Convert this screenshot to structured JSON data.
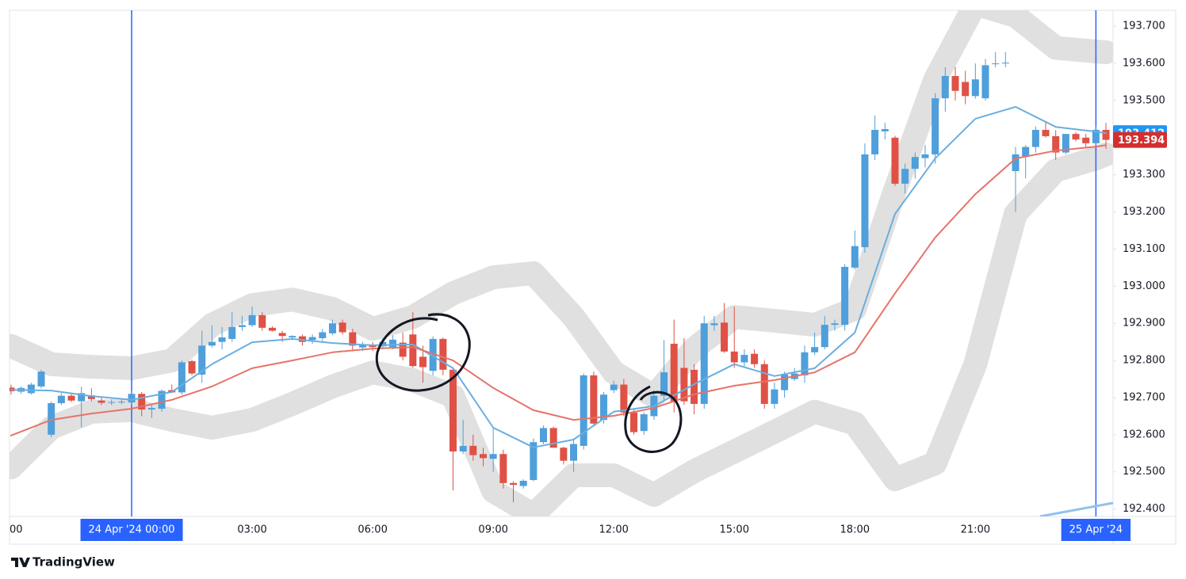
{
  "chart_data": {
    "type": "candlestick",
    "categories": [
      "00",
      null,
      null,
      null,
      null,
      null,
      null,
      null,
      null,
      null,
      null,
      null,
      "24 Apr '24 00:00",
      null,
      null,
      null,
      null,
      null,
      null,
      null,
      null,
      null,
      null,
      null,
      "03:00",
      null,
      null,
      null,
      null,
      null,
      null,
      null,
      null,
      null,
      null,
      null,
      "06:00",
      null,
      null,
      null,
      null,
      null,
      null,
      null,
      null,
      null,
      null,
      null,
      "09:00",
      null,
      null,
      null,
      null,
      null,
      null,
      null,
      null,
      null,
      null,
      null,
      "12:00",
      null,
      null,
      null,
      null,
      null,
      null,
      null,
      null,
      null,
      null,
      null,
      "15:00",
      null,
      null,
      null,
      null,
      null,
      null,
      null,
      null,
      null,
      null,
      null,
      "18:00",
      null,
      null,
      null,
      null,
      null,
      null,
      null,
      null,
      null,
      null,
      null,
      "21:00",
      null,
      null,
      null,
      null,
      null,
      null,
      null,
      null,
      null,
      null,
      null,
      "25 Apr '24",
      null
    ],
    "open": [
      192.727,
      192.716,
      192.712,
      192.73,
      192.6,
      192.685,
      192.705,
      192.69,
      192.706,
      192.692,
      192.688,
      192.688,
      192.687,
      192.71,
      192.668,
      192.67,
      192.72,
      192.714,
      192.798,
      192.762,
      192.84,
      192.85,
      192.858,
      192.89,
      192.895,
      192.922,
      192.888,
      192.874,
      192.862,
      192.865,
      192.855,
      192.86,
      192.873,
      192.902,
      192.876,
      192.835,
      192.842,
      192.838,
      192.836,
      192.848,
      192.87,
      192.81,
      192.772,
      192.858,
      192.775,
      192.555,
      192.57,
      192.548,
      192.535,
      192.548,
      192.47,
      192.462,
      192.478,
      192.58,
      192.618,
      192.565,
      192.53,
      192.57,
      192.76,
      192.64,
      192.72,
      192.735,
      192.66,
      192.61,
      192.65,
      192.705,
      192.845,
      192.78,
      192.775,
      192.683,
      192.895,
      192.902,
      192.824,
      192.795,
      192.818,
      192.79,
      192.683,
      192.72,
      192.75,
      192.76,
      192.822,
      192.836,
      192.896,
      192.896,
      193.05,
      193.105,
      193.355,
      193.417,
      193.4,
      193.276,
      193.316,
      193.345,
      193.355,
      193.506,
      193.566,
      193.55,
      193.512,
      193.506,
      193.598,
      193.6,
      193.31,
      193.35,
      193.375,
      193.421,
      193.404,
      193.36,
      193.41,
      193.4,
      193.385,
      193.421
    ],
    "high": [
      192.735,
      192.73,
      192.74,
      192.775,
      192.69,
      192.712,
      192.712,
      192.73,
      192.725,
      192.7,
      192.695,
      192.695,
      192.718,
      192.715,
      192.68,
      192.722,
      192.735,
      192.8,
      192.802,
      192.88,
      192.895,
      192.89,
      192.93,
      192.92,
      192.945,
      192.93,
      192.892,
      192.88,
      192.868,
      192.87,
      192.87,
      192.885,
      192.91,
      192.91,
      192.885,
      192.85,
      192.85,
      192.86,
      192.868,
      192.875,
      192.93,
      192.84,
      192.865,
      192.862,
      192.782,
      192.64,
      192.6,
      192.565,
      192.62,
      192.56,
      192.475,
      192.48,
      192.59,
      192.625,
      192.622,
      192.568,
      192.59,
      192.765,
      192.77,
      192.715,
      192.745,
      192.75,
      192.67,
      192.66,
      192.72,
      192.855,
      192.91,
      192.86,
      192.79,
      192.92,
      192.92,
      192.955,
      192.945,
      192.83,
      192.83,
      192.8,
      192.74,
      192.77,
      192.78,
      192.84,
      192.875,
      192.92,
      192.91,
      193.06,
      193.15,
      193.385,
      193.46,
      193.44,
      193.405,
      193.33,
      193.36,
      193.38,
      193.52,
      193.59,
      193.59,
      193.58,
      193.6,
      193.612,
      193.63,
      193.63,
      193.375,
      193.38,
      193.43,
      193.445,
      193.42,
      193.41,
      193.415,
      193.41,
      193.43,
      193.44
    ],
    "low": [
      192.708,
      192.71,
      192.708,
      192.725,
      192.593,
      192.68,
      192.688,
      192.62,
      192.69,
      192.68,
      192.68,
      192.682,
      192.678,
      192.65,
      192.645,
      192.662,
      192.712,
      192.708,
      192.76,
      192.74,
      192.835,
      192.83,
      192.85,
      192.88,
      192.89,
      192.88,
      192.878,
      192.85,
      192.855,
      192.84,
      192.845,
      192.852,
      192.868,
      192.87,
      192.825,
      192.825,
      192.825,
      192.83,
      192.83,
      192.8,
      192.78,
      192.74,
      192.76,
      192.76,
      192.45,
      192.548,
      192.53,
      192.515,
      192.5,
      192.455,
      192.418,
      192.455,
      192.475,
      192.575,
      192.565,
      192.52,
      192.5,
      192.56,
      192.625,
      192.63,
      192.712,
      192.65,
      192.6,
      192.6,
      192.64,
      192.69,
      192.66,
      192.68,
      192.655,
      192.67,
      192.88,
      192.82,
      192.78,
      192.78,
      192.78,
      192.67,
      192.67,
      192.7,
      192.745,
      192.74,
      192.815,
      192.83,
      192.88,
      192.88,
      193.045,
      193.09,
      193.34,
      193.395,
      193.27,
      193.25,
      193.29,
      193.32,
      193.33,
      193.47,
      193.5,
      193.49,
      193.505,
      193.5,
      193.59,
      193.59,
      193.2,
      193.29,
      193.36,
      193.4,
      193.34,
      193.355,
      193.39,
      193.375,
      193.375,
      193.37
    ],
    "close": [
      192.717,
      192.726,
      192.735,
      192.77,
      192.685,
      192.705,
      192.692,
      192.712,
      192.696,
      192.686,
      192.688,
      192.689,
      192.71,
      192.668,
      192.672,
      192.718,
      192.714,
      192.795,
      192.765,
      192.84,
      192.85,
      192.862,
      192.89,
      192.895,
      192.922,
      192.888,
      192.88,
      192.866,
      192.866,
      192.85,
      192.863,
      192.876,
      192.9,
      192.876,
      192.84,
      192.842,
      192.836,
      192.85,
      192.856,
      192.81,
      192.785,
      192.782,
      192.858,
      192.775,
      192.555,
      192.57,
      192.545,
      192.537,
      192.548,
      192.47,
      192.465,
      192.476,
      192.58,
      192.618,
      192.565,
      192.53,
      192.575,
      192.76,
      192.63,
      192.708,
      192.735,
      192.66,
      192.607,
      192.655,
      192.705,
      192.768,
      192.69,
      192.69,
      192.683,
      192.9,
      192.9,
      192.824,
      192.795,
      192.815,
      192.79,
      192.683,
      192.722,
      192.762,
      192.765,
      192.822,
      192.836,
      192.896,
      192.9,
      193.052,
      193.108,
      193.355,
      193.421,
      193.423,
      193.276,
      193.316,
      193.348,
      193.355,
      193.506,
      193.566,
      193.526,
      193.512,
      193.557,
      193.595,
      193.6,
      193.602,
      193.355,
      193.375,
      193.421,
      193.404,
      193.36,
      193.41,
      193.395,
      193.385,
      193.421,
      193.394
    ],
    "up_color": "#4e9fdb",
    "down_color": "#df5145",
    "lines": [
      {
        "color": "#6aaedf",
        "x": [
          0,
          4,
          8,
          12,
          16,
          20,
          24,
          28,
          32,
          36,
          40,
          44,
          48,
          52,
          56,
          60,
          64,
          68,
          72,
          76,
          80,
          84,
          88,
          92,
          96,
          100,
          104,
          108,
          109
        ],
        "values": [
          192.721,
          192.719,
          192.704,
          192.694,
          192.715,
          192.79,
          192.849,
          192.858,
          192.847,
          192.841,
          192.843,
          192.779,
          192.619,
          192.566,
          192.587,
          192.662,
          192.677,
          192.736,
          192.79,
          192.758,
          192.779,
          192.875,
          193.195,
          193.344,
          193.451,
          193.483,
          193.429,
          193.416,
          193.412
        ]
      },
      {
        "color": "#e6736a",
        "x": [
          0,
          4,
          8,
          12,
          16,
          20,
          24,
          28,
          32,
          36,
          40,
          44,
          48,
          52,
          56,
          60,
          64,
          68,
          72,
          76,
          80,
          84,
          88,
          92,
          96,
          100,
          104,
          108,
          109
        ],
        "values": [
          192.598,
          192.64,
          192.657,
          192.67,
          192.694,
          192.73,
          192.779,
          192.8,
          192.822,
          192.832,
          192.836,
          192.8,
          192.726,
          192.666,
          192.64,
          192.651,
          192.672,
          192.709,
          192.732,
          192.747,
          192.768,
          192.822,
          192.981,
          193.131,
          193.248,
          193.344,
          193.365,
          193.376,
          193.38
        ]
      }
    ],
    "bands": [
      {
        "color": "#e0e0e0",
        "x": [
          0,
          4,
          8,
          12,
          16,
          20,
          24,
          28,
          32,
          36,
          40,
          44,
          48,
          52,
          56,
          60,
          64,
          68,
          72,
          76,
          80,
          84,
          88,
          92,
          96,
          100,
          104,
          108,
          109
        ],
        "values": [
          192.839,
          192.79,
          192.783,
          192.779,
          192.8,
          192.896,
          192.949,
          192.964,
          192.939,
          192.885,
          192.917,
          192.981,
          193.024,
          193.035,
          192.917,
          192.768,
          192.704,
          192.832,
          192.917,
          192.907,
          192.896,
          192.939,
          193.259,
          193.557,
          193.76,
          193.728,
          193.642,
          193.632,
          193.63
        ]
      },
      {
        "color": "#e0e0e0",
        "x": [
          0,
          4,
          8,
          12,
          16,
          20,
          24,
          28,
          32,
          36,
          40,
          44,
          48,
          52,
          56,
          60,
          64,
          68,
          72,
          76,
          80,
          84,
          88,
          92,
          96,
          100,
          104,
          108,
          109
        ],
        "values": [
          192.512,
          192.619,
          192.662,
          192.666,
          192.64,
          192.619,
          192.64,
          192.683,
          192.73,
          192.768,
          192.747,
          192.704,
          192.448,
          192.384,
          192.491,
          192.491,
          192.438,
          192.502,
          192.555,
          192.608,
          192.662,
          192.63,
          192.48,
          192.523,
          192.79,
          193.195,
          193.312,
          193.344,
          193.355
        ]
      }
    ],
    "session_breaks": [
      12,
      108
    ],
    "session_color": "#2962ff",
    "ylim": [
      192.38,
      193.743
    ],
    "yticks": [
      {
        "value": 192.4,
        "label": "192.400"
      },
      {
        "value": 192.5,
        "label": "192.500"
      },
      {
        "value": 192.6,
        "label": "192.600"
      },
      {
        "value": 192.7,
        "label": "192.700"
      },
      {
        "value": 192.8,
        "label": "192.800"
      },
      {
        "value": 192.9,
        "label": "192.900"
      },
      {
        "value": 193.0,
        "label": "193.000"
      },
      {
        "value": 193.1,
        "label": "193.100"
      },
      {
        "value": 193.2,
        "label": "193.200"
      },
      {
        "value": 193.3,
        "label": "193.300"
      },
      {
        "value": 193.4,
        "label": "193.400"
      },
      {
        "value": 193.5,
        "label": "193.500"
      },
      {
        "value": 193.6,
        "label": "193.600"
      },
      {
        "value": 193.7,
        "label": "193.700"
      }
    ],
    "price_labels": [
      {
        "value": 193.412,
        "color": "#2196f3"
      },
      {
        "value": 193.394,
        "color": "#d32f2f"
      }
    ],
    "brand": "TradingView"
  }
}
